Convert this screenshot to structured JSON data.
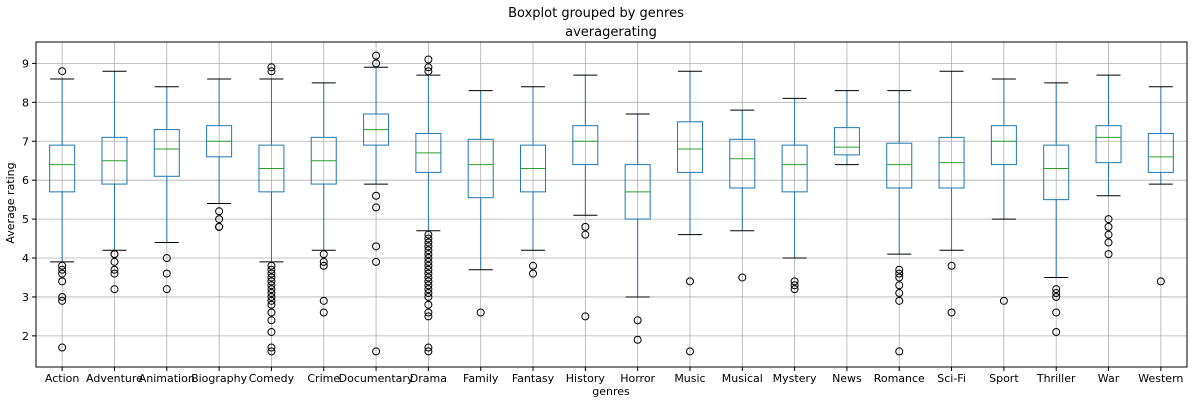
{
  "suptitle": "Boxplot grouped by genres",
  "chart_data": {
    "type": "boxplot",
    "title": "averagerating",
    "xlabel": "genres",
    "ylabel": "Average rating",
    "ylim": [
      1.2,
      9.55
    ],
    "yticks": [
      2,
      3,
      4,
      5,
      6,
      7,
      8,
      9
    ],
    "grid": true,
    "colors": {
      "box": "#1f77b4",
      "median": "#2ca02c",
      "flier": "#000000",
      "grid": "#b0b0b0"
    },
    "categories": [
      "Action",
      "Adventure",
      "Animation",
      "Biography",
      "Comedy",
      "Crime",
      "Documentary",
      "Drama",
      "Family",
      "Fantasy",
      "History",
      "Horror",
      "Music",
      "Musical",
      "Mystery",
      "News",
      "Romance",
      "Sci-Fi",
      "Sport",
      "Thriller",
      "War",
      "Western"
    ],
    "boxes": [
      {
        "genre": "Action",
        "whislo": 3.9,
        "q1": 5.7,
        "med": 6.4,
        "q3": 6.9,
        "whishi": 8.6,
        "fliers": [
          8.8,
          3.8,
          3.7,
          3.6,
          3.4,
          3.0,
          2.9,
          1.7
        ]
      },
      {
        "genre": "Adventure",
        "whislo": 4.2,
        "q1": 5.9,
        "med": 6.5,
        "q3": 7.1,
        "whishi": 8.8,
        "fliers": [
          4.1,
          4.1,
          3.9,
          3.7,
          3.6,
          3.2
        ]
      },
      {
        "genre": "Animation",
        "whislo": 4.4,
        "q1": 6.1,
        "med": 6.8,
        "q3": 7.3,
        "whishi": 8.4,
        "fliers": [
          4.0,
          3.6,
          3.2
        ]
      },
      {
        "genre": "Biography",
        "whislo": 5.4,
        "q1": 6.6,
        "med": 7.0,
        "q3": 7.4,
        "whishi": 8.6,
        "fliers": [
          5.2,
          5.0,
          4.8,
          4.8
        ]
      },
      {
        "genre": "Comedy",
        "whislo": 3.9,
        "q1": 5.7,
        "med": 6.3,
        "q3": 6.9,
        "whishi": 8.6,
        "fliers": [
          8.9,
          8.8,
          3.8,
          3.7,
          3.6,
          3.5,
          3.4,
          3.3,
          3.2,
          3.1,
          3.0,
          2.9,
          2.8,
          2.6,
          2.4,
          2.1,
          1.7,
          1.6
        ]
      },
      {
        "genre": "Crime",
        "whislo": 4.2,
        "q1": 5.9,
        "med": 6.5,
        "q3": 7.1,
        "whishi": 8.5,
        "fliers": [
          4.1,
          3.9,
          3.8,
          2.9,
          2.6
        ]
      },
      {
        "genre": "Documentary",
        "whislo": 5.9,
        "q1": 6.9,
        "med": 7.3,
        "q3": 7.7,
        "whishi": 8.9,
        "fliers": [
          9.2,
          9.0,
          5.6,
          5.3,
          4.3,
          3.9,
          1.6
        ]
      },
      {
        "genre": "Drama",
        "whislo": 4.7,
        "q1": 6.2,
        "med": 6.7,
        "q3": 7.2,
        "whishi": 8.7,
        "fliers": [
          9.1,
          8.9,
          8.8,
          4.6,
          4.5,
          4.4,
          4.3,
          4.2,
          4.1,
          4.0,
          3.9,
          3.8,
          3.7,
          3.6,
          3.5,
          3.4,
          3.3,
          3.2,
          3.1,
          3.0,
          2.8,
          2.6,
          2.5,
          1.7,
          1.6
        ]
      },
      {
        "genre": "Family",
        "whislo": 3.7,
        "q1": 5.55,
        "med": 6.4,
        "q3": 7.05,
        "whishi": 8.3,
        "fliers": [
          2.6
        ]
      },
      {
        "genre": "Fantasy",
        "whislo": 4.2,
        "q1": 5.7,
        "med": 6.3,
        "q3": 6.9,
        "whishi": 8.4,
        "fliers": [
          3.8,
          3.6
        ]
      },
      {
        "genre": "History",
        "whislo": 5.1,
        "q1": 6.4,
        "med": 7.0,
        "q3": 7.4,
        "whishi": 8.7,
        "fliers": [
          4.8,
          4.6,
          2.5
        ]
      },
      {
        "genre": "Horror",
        "whislo": 3.0,
        "q1": 5.0,
        "med": 5.7,
        "q3": 6.4,
        "whishi": 7.7,
        "fliers": [
          2.4,
          1.9
        ]
      },
      {
        "genre": "Music",
        "whislo": 4.6,
        "q1": 6.2,
        "med": 6.8,
        "q3": 7.5,
        "whishi": 8.8,
        "fliers": [
          3.4,
          1.6
        ]
      },
      {
        "genre": "Musical",
        "whislo": 4.7,
        "q1": 5.8,
        "med": 6.55,
        "q3": 7.05,
        "whishi": 7.8,
        "fliers": [
          3.5
        ]
      },
      {
        "genre": "Mystery",
        "whislo": 4.0,
        "q1": 5.7,
        "med": 6.4,
        "q3": 6.9,
        "whishi": 8.1,
        "fliers": [
          3.4,
          3.3,
          3.2
        ]
      },
      {
        "genre": "News",
        "whislo": 6.4,
        "q1": 6.65,
        "med": 6.85,
        "q3": 7.35,
        "whishi": 8.3,
        "fliers": []
      },
      {
        "genre": "Romance",
        "whislo": 4.1,
        "q1": 5.8,
        "med": 6.4,
        "q3": 6.95,
        "whishi": 8.3,
        "fliers": [
          3.7,
          3.6,
          3.5,
          3.3,
          3.1,
          2.9,
          1.6
        ]
      },
      {
        "genre": "Sci-Fi",
        "whislo": 4.2,
        "q1": 5.8,
        "med": 6.45,
        "q3": 7.1,
        "whishi": 8.8,
        "fliers": [
          3.8,
          2.6
        ]
      },
      {
        "genre": "Sport",
        "whislo": 5.0,
        "q1": 6.4,
        "med": 7.0,
        "q3": 7.4,
        "whishi": 8.6,
        "fliers": [
          2.9
        ]
      },
      {
        "genre": "Thriller",
        "whislo": 3.5,
        "q1": 5.5,
        "med": 6.3,
        "q3": 6.9,
        "whishi": 8.5,
        "fliers": [
          3.2,
          3.1,
          3.0,
          2.6,
          2.1
        ]
      },
      {
        "genre": "War",
        "whislo": 5.6,
        "q1": 6.45,
        "med": 7.1,
        "q3": 7.4,
        "whishi": 8.7,
        "fliers": [
          5.0,
          4.8,
          4.6,
          4.4,
          4.1
        ]
      },
      {
        "genre": "Western",
        "whislo": 5.9,
        "q1": 6.2,
        "med": 6.6,
        "q3": 7.2,
        "whishi": 8.4,
        "fliers": [
          3.4
        ]
      }
    ]
  }
}
